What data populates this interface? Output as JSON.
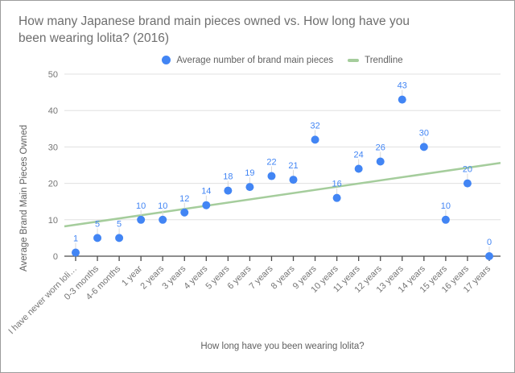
{
  "title": {
    "line1": "How many Japanese brand main pieces owned vs. How long have you",
    "line2": "been wearing lolita? (2016)"
  },
  "colors": {
    "point": "#4285f4",
    "point_label": "#4285f4",
    "trendline": "#a5cd9c",
    "grid": "#e0e0e0",
    "axis_line": "#4a4a4a",
    "axis_text": "#757575",
    "title_text": "#6e6e6e",
    "axis_title_text": "#616161",
    "legend_text": "#616161",
    "label_stem": "#d9d9d9",
    "border": "#9c9c9c",
    "background": "#ffffff"
  },
  "chart_data": {
    "type": "scatter",
    "title": "How many Japanese brand main pieces owned vs. How long have you been wearing lolita? (2016)",
    "xlabel": "How long have you been wearing lolita?",
    "ylabel": "Average Brand Main Pieces Owned",
    "categories": [
      "I have never worn loli…",
      "0-3 months",
      "4-6 months",
      "1 year",
      "2 years",
      "3 years",
      "4 years",
      "5 years",
      "6 years",
      "7 years",
      "8 years",
      "9 years",
      "10 years",
      "11 years",
      "12 years",
      "13 years",
      "14 years",
      "15 years",
      "16 years",
      "17 years"
    ],
    "series": [
      {
        "name": "Average number of brand main pieces",
        "color": "#4285f4",
        "values": [
          1,
          5,
          5,
          10,
          10,
          12,
          14,
          18,
          19,
          22,
          21,
          32,
          16,
          24,
          26,
          43,
          30,
          10,
          20,
          0
        ]
      }
    ],
    "trendline": {
      "name": "Trendline",
      "color": "#a5cd9c",
      "intercept": 8.63,
      "slope": 0.87
    },
    "point_labels": true,
    "grid": true,
    "legend_position": "top",
    "ylim": [
      0,
      50
    ],
    "yticks": [
      0,
      10,
      20,
      30,
      40,
      50
    ]
  }
}
